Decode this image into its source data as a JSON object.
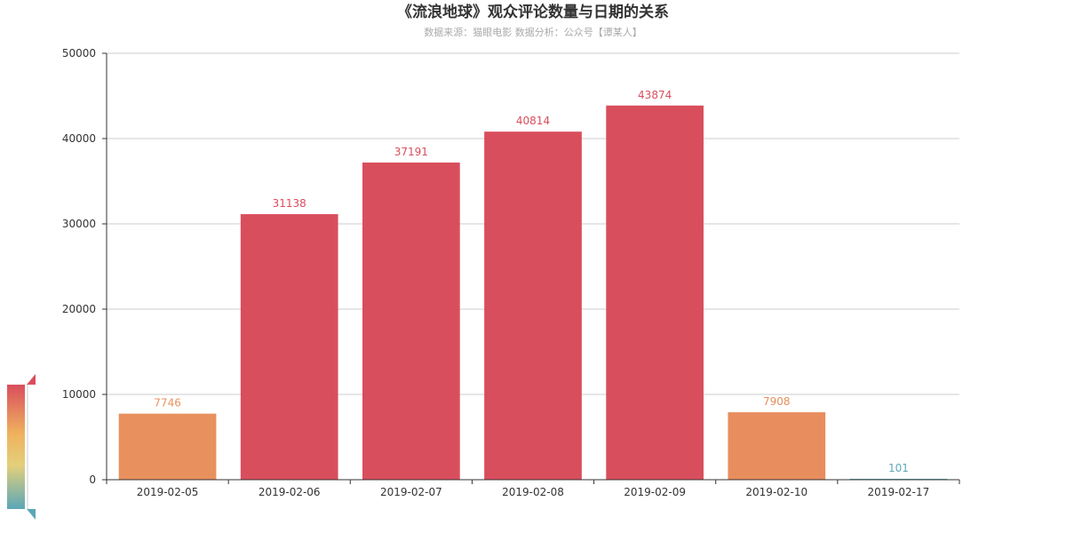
{
  "chart_data": {
    "type": "bar",
    "title": "《流浪地球》观众评论数量与日期的关系",
    "subtitle": "数据来源：猫眼电影 数据分析：公众号【谭某人】",
    "categories": [
      "2019-02-05",
      "2019-02-06",
      "2019-02-07",
      "2019-02-08",
      "2019-02-09",
      "2019-02-10",
      "2019-02-17"
    ],
    "values": [
      7746,
      31138,
      37191,
      40814,
      43874,
      7908,
      101
    ],
    "ylim": [
      0,
      50000
    ],
    "yticks": [
      0,
      10000,
      20000,
      30000,
      40000,
      50000
    ],
    "grid": true,
    "data_labels": true,
    "visual_map": {
      "position": "bottom-left",
      "min": 0,
      "max": 43874,
      "colors": [
        "#5aa7b8",
        "#e3cf7b",
        "#f0b35e",
        "#d94e5d"
      ]
    }
  }
}
